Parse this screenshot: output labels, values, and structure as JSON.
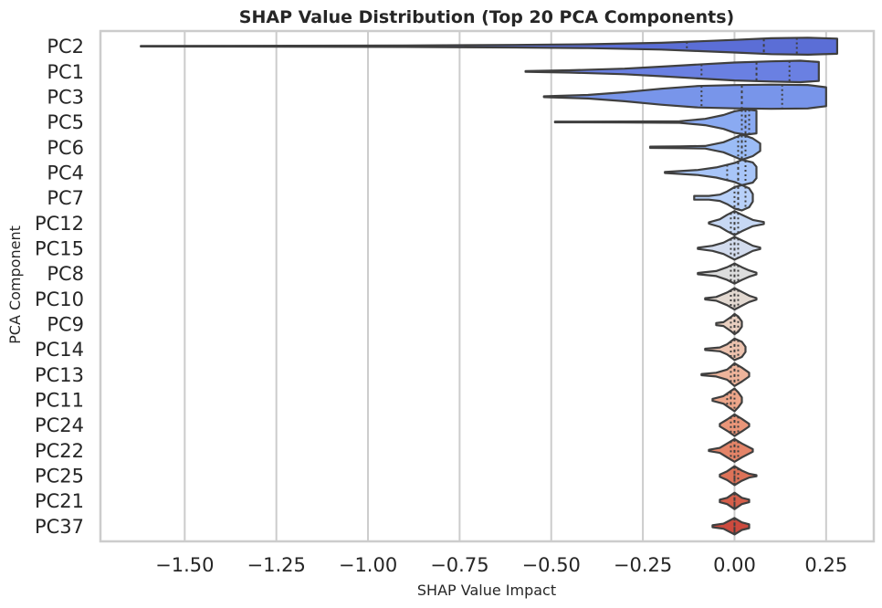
{
  "chart_data": {
    "type": "violin",
    "orientation": "horizontal",
    "title": "SHAP Value Distribution (Top 20 PCA Components)",
    "xlabel": "SHAP Value Impact",
    "ylabel": "PCA Component",
    "xlim": [
      -1.73,
      0.38
    ],
    "xticks": [
      -1.5,
      -1.25,
      -1.0,
      -0.75,
      -0.5,
      -0.25,
      0.0,
      0.25
    ],
    "xtick_labels": [
      "−1.50",
      "−1.25",
      "−1.00",
      "−0.75",
      "−0.50",
      "−0.25",
      "0.00",
      "0.25"
    ],
    "grid": "vertical",
    "inner": "quartile",
    "palette": "coolwarm",
    "colors": [
      "#5b6ed6",
      "#6a80e2",
      "#7895ea",
      "#8aaaf2",
      "#9bbcf6",
      "#a8c5f8",
      "#b8d0f8",
      "#c7d8f4",
      "#d3dcee",
      "#dcdddd",
      "#e3d9d1",
      "#e9cfc0",
      "#ecc2ae",
      "#eeb49b",
      "#eda68a",
      "#ea9679",
      "#e48468",
      "#dd7258",
      "#d55f4b",
      "#cc4a3e"
    ],
    "components": [
      {
        "name": "PC2",
        "min": -1.62,
        "max": 0.28,
        "q1": -0.13,
        "median": 0.08,
        "q3": 0.17,
        "dist": [
          [
            -1.62,
            0.2
          ],
          [
            -1.2,
            0.4
          ],
          [
            -0.9,
            0.6
          ],
          [
            -0.6,
            1.0
          ],
          [
            -0.4,
            1.5
          ],
          [
            -0.2,
            2.7
          ],
          [
            -0.1,
            3.8
          ],
          [
            0.0,
            5.0
          ],
          [
            0.1,
            6.3
          ],
          [
            0.2,
            6.7
          ],
          [
            0.28,
            6.0
          ]
        ]
      },
      {
        "name": "PC1",
        "min": -0.57,
        "max": 0.23,
        "q1": -0.09,
        "median": 0.06,
        "q3": 0.15,
        "dist": [
          [
            -0.57,
            0.3
          ],
          [
            -0.45,
            0.9
          ],
          [
            -0.3,
            2.2
          ],
          [
            -0.2,
            3.8
          ],
          [
            -0.1,
            5.5
          ],
          [
            0.0,
            7.1
          ],
          [
            0.1,
            8.0
          ],
          [
            0.18,
            8.5
          ],
          [
            0.23,
            7.5
          ]
        ]
      },
      {
        "name": "PC3",
        "min": -0.52,
        "max": 0.25,
        "q1": -0.09,
        "median": 0.02,
        "q3": 0.13,
        "dist": [
          [
            -0.52,
            0.3
          ],
          [
            -0.4,
            1.4
          ],
          [
            -0.3,
            3.6
          ],
          [
            -0.2,
            6.3
          ],
          [
            -0.1,
            8.5
          ],
          [
            0.0,
            9.2
          ],
          [
            0.1,
            9.6
          ],
          [
            0.2,
            9.3
          ],
          [
            0.25,
            7.5
          ]
        ]
      },
      {
        "name": "PC5",
        "min": -0.49,
        "max": 0.06,
        "q1": 0.02,
        "median": 0.03,
        "q3": 0.04,
        "dist": [
          [
            -0.49,
            0.3
          ],
          [
            -0.3,
            0.35
          ],
          [
            -0.15,
            0.6
          ],
          [
            -0.08,
            2.5
          ],
          [
            -0.03,
            5.5
          ],
          [
            0.0,
            8.5
          ],
          [
            0.03,
            10.0
          ],
          [
            0.06,
            9.0
          ]
        ]
      },
      {
        "name": "PC6",
        "min": -0.23,
        "max": 0.07,
        "q1": 0.01,
        "median": 0.02,
        "q3": 0.03,
        "dist": [
          [
            -0.23,
            0.5
          ],
          [
            -0.15,
            0.7
          ],
          [
            -0.08,
            1.0
          ],
          [
            -0.03,
            4.0
          ],
          [
            0.0,
            7.5
          ],
          [
            0.02,
            10.0
          ],
          [
            0.05,
            7.0
          ],
          [
            0.07,
            3.0
          ]
        ]
      },
      {
        "name": "PC4",
        "min": -0.19,
        "max": 0.06,
        "q1": -0.02,
        "median": 0.01,
        "q3": 0.03,
        "dist": [
          [
            -0.19,
            0.4
          ],
          [
            -0.1,
            2.0
          ],
          [
            -0.05,
            4.0
          ],
          [
            0.0,
            7.5
          ],
          [
            0.02,
            10.0
          ],
          [
            0.05,
            8.0
          ],
          [
            0.06,
            4.5
          ]
        ]
      },
      {
        "name": "PC7",
        "min": -0.11,
        "max": 0.05,
        "q1": 0.0,
        "median": 0.01,
        "q3": 0.03,
        "dist": [
          [
            -0.11,
            1.5
          ],
          [
            -0.07,
            1.5
          ],
          [
            -0.04,
            2.5
          ],
          [
            -0.02,
            5.0
          ],
          [
            0.0,
            8.5
          ],
          [
            0.02,
            10.0
          ],
          [
            0.04,
            7.5
          ],
          [
            0.05,
            3.0
          ]
        ]
      },
      {
        "name": "PC12",
        "min": -0.07,
        "max": 0.08,
        "q1": -0.01,
        "median": 0.0,
        "q3": 0.01,
        "dist": [
          [
            -0.07,
            0.5
          ],
          [
            -0.04,
            3.0
          ],
          [
            -0.02,
            6.5
          ],
          [
            0.0,
            9.5
          ],
          [
            0.02,
            6.5
          ],
          [
            0.05,
            2.5
          ],
          [
            0.08,
            0.8
          ]
        ]
      },
      {
        "name": "PC15",
        "min": -0.1,
        "max": 0.07,
        "q1": -0.01,
        "median": 0.0,
        "q3": 0.01,
        "dist": [
          [
            -0.1,
            0.5
          ],
          [
            -0.06,
            2.0
          ],
          [
            -0.03,
            4.5
          ],
          [
            0.0,
            9.0
          ],
          [
            0.03,
            5.0
          ],
          [
            0.05,
            2.0
          ],
          [
            0.07,
            0.6
          ]
        ]
      },
      {
        "name": "PC8",
        "min": -0.1,
        "max": 0.06,
        "q1": -0.01,
        "median": 0.0,
        "q3": 0.01,
        "dist": [
          [
            -0.1,
            0.5
          ],
          [
            -0.05,
            2.0
          ],
          [
            -0.02,
            5.0
          ],
          [
            0.0,
            8.0
          ],
          [
            0.02,
            5.0
          ],
          [
            0.04,
            2.5
          ],
          [
            0.06,
            0.7
          ]
        ]
      },
      {
        "name": "PC10",
        "min": -0.08,
        "max": 0.06,
        "q1": -0.01,
        "median": 0.0,
        "q3": 0.01,
        "dist": [
          [
            -0.08,
            0.5
          ],
          [
            -0.05,
            1.5
          ],
          [
            -0.02,
            5.0
          ],
          [
            0.0,
            8.5
          ],
          [
            0.02,
            5.5
          ],
          [
            0.04,
            2.5
          ],
          [
            0.06,
            0.6
          ]
        ]
      },
      {
        "name": "PC9",
        "min": -0.05,
        "max": 0.02,
        "q1": -0.01,
        "median": 0.0,
        "q3": 0.01,
        "dist": [
          [
            -0.05,
            0.8
          ],
          [
            -0.03,
            1.5
          ],
          [
            -0.01,
            5.5
          ],
          [
            0.0,
            8.0
          ],
          [
            0.01,
            6.0
          ],
          [
            0.02,
            2.0
          ]
        ]
      },
      {
        "name": "PC14",
        "min": -0.08,
        "max": 0.03,
        "q1": -0.01,
        "median": 0.0,
        "q3": 0.01,
        "dist": [
          [
            -0.08,
            0.5
          ],
          [
            -0.04,
            1.5
          ],
          [
            -0.02,
            4.0
          ],
          [
            0.0,
            8.5
          ],
          [
            0.02,
            6.0
          ],
          [
            0.03,
            2.0
          ]
        ]
      },
      {
        "name": "PC13",
        "min": -0.09,
        "max": 0.04,
        "q1": -0.01,
        "median": 0.0,
        "q3": 0.01,
        "dist": [
          [
            -0.09,
            0.5
          ],
          [
            -0.05,
            1.5
          ],
          [
            -0.02,
            4.0
          ],
          [
            0.0,
            9.0
          ],
          [
            0.02,
            5.5
          ],
          [
            0.04,
            1.5
          ]
        ]
      },
      {
        "name": "PC11",
        "min": -0.06,
        "max": 0.02,
        "q1": -0.02,
        "median": -0.01,
        "q3": 0.0,
        "dist": [
          [
            -0.06,
            0.8
          ],
          [
            -0.03,
            3.0
          ],
          [
            -0.01,
            7.0
          ],
          [
            0.0,
            9.0
          ],
          [
            0.01,
            6.0
          ],
          [
            0.02,
            2.0
          ]
        ]
      },
      {
        "name": "PC24",
        "min": -0.04,
        "max": 0.04,
        "q1": -0.01,
        "median": 0.0,
        "q3": 0.01,
        "dist": [
          [
            -0.04,
            1.0
          ],
          [
            -0.02,
            4.5
          ],
          [
            0.0,
            8.5
          ],
          [
            0.02,
            5.0
          ],
          [
            0.04,
            1.0
          ]
        ]
      },
      {
        "name": "PC22",
        "min": -0.07,
        "max": 0.05,
        "q1": -0.01,
        "median": 0.0,
        "q3": 0.01,
        "dist": [
          [
            -0.07,
            0.5
          ],
          [
            -0.04,
            2.0
          ],
          [
            -0.02,
            5.5
          ],
          [
            0.0,
            9.0
          ],
          [
            0.02,
            5.5
          ],
          [
            0.05,
            1.0
          ]
        ]
      },
      {
        "name": "PC25",
        "min": -0.04,
        "max": 0.06,
        "q1": 0.0,
        "median": 0.0,
        "q3": 0.01,
        "dist": [
          [
            -0.04,
            0.8
          ],
          [
            -0.02,
            3.5
          ],
          [
            0.0,
            7.5
          ],
          [
            0.02,
            4.0
          ],
          [
            0.04,
            1.5
          ],
          [
            0.06,
            0.5
          ]
        ]
      },
      {
        "name": "PC21",
        "min": -0.04,
        "max": 0.04,
        "q1": 0.0,
        "median": 0.0,
        "q3": 0.0,
        "dist": [
          [
            -0.04,
            1.0
          ],
          [
            -0.02,
            2.5
          ],
          [
            0.0,
            6.5
          ],
          [
            0.02,
            2.5
          ],
          [
            0.04,
            1.0
          ]
        ]
      },
      {
        "name": "PC37",
        "min": -0.06,
        "max": 0.04,
        "q1": 0.0,
        "median": 0.0,
        "q3": 0.0,
        "dist": [
          [
            -0.06,
            0.8
          ],
          [
            -0.03,
            2.0
          ],
          [
            0.0,
            6.5
          ],
          [
            0.02,
            3.0
          ],
          [
            0.04,
            1.5
          ]
        ]
      }
    ]
  }
}
